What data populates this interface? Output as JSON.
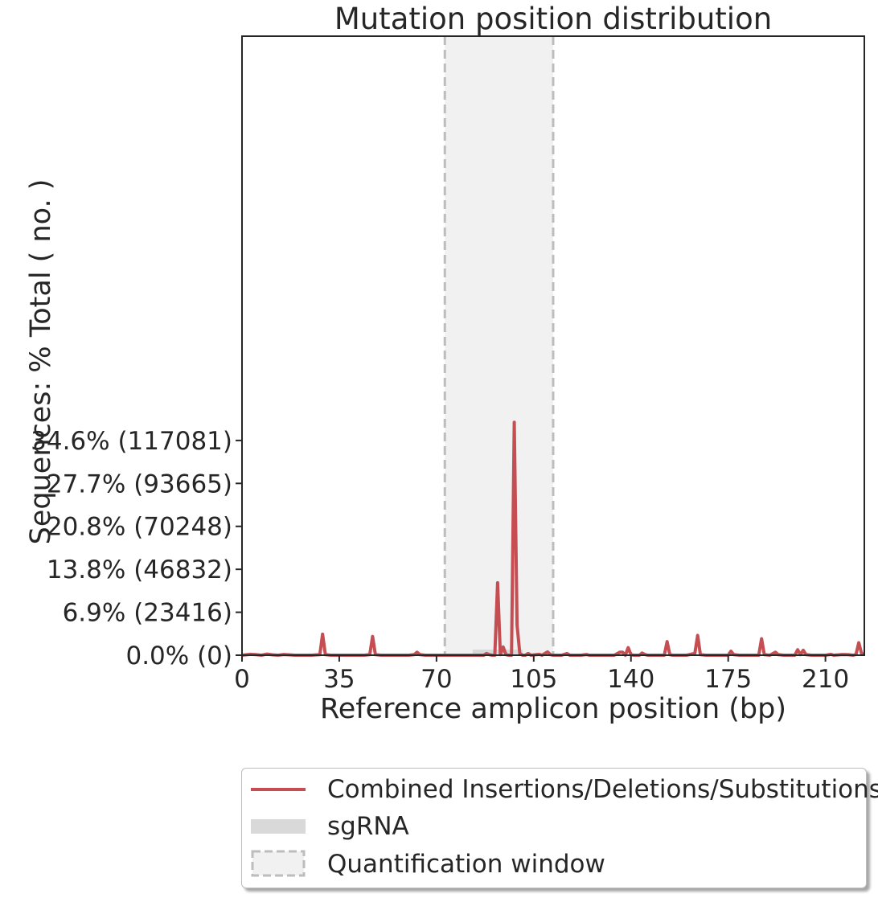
{
  "chart_data": {
    "type": "line",
    "title": "Mutation position distribution",
    "xlabel": "Reference amplicon position (bp)",
    "ylabel": "Sequences: % Total ( no. )",
    "xlim": [
      0,
      224
    ],
    "ylim": [
      0,
      337500
    ],
    "x_ticks": [
      0,
      35,
      70,
      105,
      140,
      175,
      210
    ],
    "y_ticks": [
      {
        "value": 0,
        "label": "0.0% (0)"
      },
      {
        "value": 23416,
        "label": "6.9% (23416)"
      },
      {
        "value": 46832,
        "label": "13.8% (46832)"
      },
      {
        "value": 70248,
        "label": "20.8% (70248)"
      },
      {
        "value": 93665,
        "label": "27.7% (93665)"
      },
      {
        "value": 117081,
        "label": "34.6% (117081)"
      }
    ],
    "quantification_window": [
      73,
      112
    ],
    "sgrna": [
      83,
      101
    ],
    "series": [
      {
        "name": "Combined Insertions/Deletions/Substitutions",
        "color": "#c44e52",
        "points": [
          [
            0,
            0
          ],
          [
            3,
            500
          ],
          [
            5,
            300
          ],
          [
            7,
            0
          ],
          [
            9,
            600
          ],
          [
            11,
            200
          ],
          [
            13,
            0
          ],
          [
            15,
            400
          ],
          [
            17,
            200
          ],
          [
            19,
            0
          ],
          [
            25,
            0
          ],
          [
            28,
            300
          ],
          [
            29,
            11500
          ],
          [
            30,
            300
          ],
          [
            32,
            0
          ],
          [
            44,
            0
          ],
          [
            46,
            300
          ],
          [
            47,
            10200
          ],
          [
            48,
            300
          ],
          [
            50,
            0
          ],
          [
            60,
            0
          ],
          [
            62,
            300
          ],
          [
            63,
            1600
          ],
          [
            64,
            300
          ],
          [
            66,
            0
          ],
          [
            85,
            0
          ],
          [
            87,
            0
          ],
          [
            88,
            900
          ],
          [
            89,
            300
          ],
          [
            90,
            0
          ],
          [
            91,
            0
          ],
          [
            92,
            39500
          ],
          [
            93,
            300
          ],
          [
            94,
            4500
          ],
          [
            95,
            300
          ],
          [
            96,
            0
          ],
          [
            97,
            0
          ],
          [
            98,
            127000
          ],
          [
            99,
            16500
          ],
          [
            100,
            900
          ],
          [
            101,
            0
          ],
          [
            102,
            0
          ],
          [
            103,
            900
          ],
          [
            104,
            0
          ],
          [
            107,
            500
          ],
          [
            108,
            0
          ],
          [
            110,
            1800
          ],
          [
            111,
            300
          ],
          [
            112,
            0
          ],
          [
            115,
            0
          ],
          [
            117,
            900
          ],
          [
            118,
            0
          ],
          [
            122,
            0
          ],
          [
            124,
            400
          ],
          [
            125,
            0
          ],
          [
            134,
            0
          ],
          [
            136,
            1600
          ],
          [
            137,
            1600
          ],
          [
            138,
            0
          ],
          [
            139,
            4100
          ],
          [
            140,
            300
          ],
          [
            141,
            0
          ],
          [
            143,
            0
          ],
          [
            144,
            1200
          ],
          [
            145,
            400
          ],
          [
            146,
            0
          ],
          [
            148,
            0
          ],
          [
            150,
            0
          ],
          [
            152,
            0
          ],
          [
            153,
            7400
          ],
          [
            154,
            300
          ],
          [
            155,
            0
          ],
          [
            160,
            0
          ],
          [
            163,
            1000
          ],
          [
            164,
            10800
          ],
          [
            165,
            300
          ],
          [
            167,
            0
          ],
          [
            175,
            0
          ],
          [
            176,
            2200
          ],
          [
            177,
            300
          ],
          [
            179,
            0
          ],
          [
            186,
            0
          ],
          [
            187,
            9000
          ],
          [
            188,
            300
          ],
          [
            190,
            0
          ],
          [
            192,
            1600
          ],
          [
            193,
            300
          ],
          [
            195,
            0
          ],
          [
            199,
            0
          ],
          [
            200,
            3000
          ],
          [
            201,
            300
          ],
          [
            202,
            2700
          ],
          [
            203,
            300
          ],
          [
            205,
            0
          ],
          [
            210,
            0
          ],
          [
            212,
            500
          ],
          [
            213,
            0
          ],
          [
            216,
            400
          ],
          [
            218,
            300
          ],
          [
            220,
            0
          ],
          [
            221,
            400
          ],
          [
            222,
            6800
          ],
          [
            223,
            1000
          ],
          [
            224,
            300
          ]
        ]
      }
    ],
    "legend": {
      "placement": "below",
      "entries": [
        {
          "label": "Combined Insertions/Deletions/Substitutions",
          "kind": "line",
          "color": "#c44e52"
        },
        {
          "label": "sgRNA",
          "kind": "band",
          "color": "#d9d9d9"
        },
        {
          "label": "Quantification window",
          "kind": "dashed-box",
          "color": "#bdbdbd"
        }
      ]
    }
  }
}
